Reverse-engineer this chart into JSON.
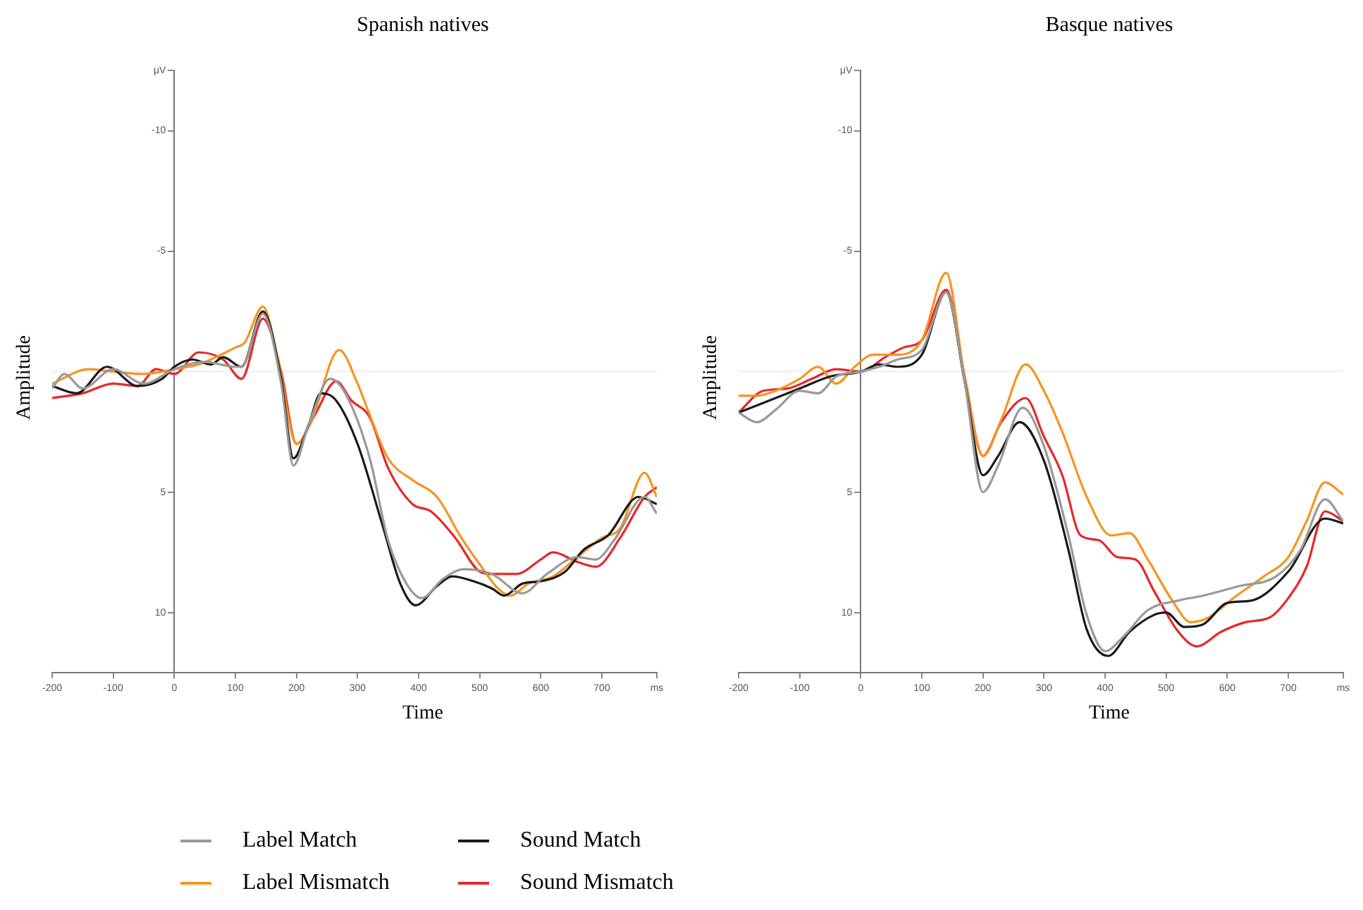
{
  "chart_data": [
    {
      "type": "line",
      "title": "Spanish natives",
      "xlabel": "Time",
      "ylabel": "Amplitude",
      "xlim": [
        -200,
        790
      ],
      "xticks": [
        -200,
        -100,
        0,
        100,
        200,
        300,
        400,
        500,
        600,
        700,
        {
          "value": 790,
          "label": "ms"
        }
      ],
      "ylim": [
        12.5,
        -12.5
      ],
      "yticks": [
        {
          "value": -12.5,
          "label": "μV"
        },
        -10,
        -5,
        5,
        10
      ],
      "grid": false,
      "legend": "bottom",
      "ref_lines": [
        {
          "axis": "y",
          "value": 0,
          "color": "#eeeeee"
        }
      ],
      "series": [
        {
          "name": "Label Match",
          "color": "#999999",
          "x": [
            -200,
            -180,
            -150,
            -100,
            -50,
            0,
            50,
            100,
            110,
            145,
            175,
            195,
            220,
            255,
            280,
            320,
            350,
            380,
            405,
            440,
            475,
            520,
            570,
            610,
            660,
            690,
            720,
            770,
            790
          ],
          "values": [
            0.7,
            0.1,
            0.7,
            -0.1,
            0.5,
            -0.1,
            -0.4,
            -0.2,
            -0.2,
            -2.4,
            0.5,
            3.9,
            2.2,
            0.3,
            0.9,
            3.6,
            7.0,
            8.8,
            9.4,
            8.6,
            8.2,
            8.4,
            9.2,
            8.4,
            7.7,
            7.8,
            7.0,
            5.2,
            5.9
          ]
        },
        {
          "name": "Sound Match",
          "color": "#1a1a1a",
          "x": [
            -200,
            -160,
            -110,
            -60,
            -20,
            0,
            30,
            60,
            80,
            110,
            145,
            175,
            195,
            220,
            240,
            265,
            300,
            340,
            370,
            395,
            430,
            455,
            490,
            520,
            540,
            570,
            600,
            640,
            670,
            710,
            760,
            790
          ],
          "values": [
            0.6,
            0.9,
            -0.2,
            0.6,
            0.3,
            -0.2,
            -0.5,
            -0.3,
            -0.6,
            -0.2,
            -2.5,
            0.3,
            3.6,
            2.2,
            0.9,
            1.2,
            3.0,
            6.3,
            8.8,
            9.7,
            8.9,
            8.5,
            8.7,
            9.0,
            9.3,
            8.8,
            8.7,
            8.3,
            7.4,
            6.8,
            5.2,
            5.5
          ]
        },
        {
          "name": "Label Mismatch",
          "color": "#f7941d",
          "x": [
            -200,
            -140,
            -100,
            -50,
            0,
            40,
            100,
            115,
            145,
            170,
            200,
            225,
            270,
            300,
            320,
            350,
            390,
            430,
            470,
            500,
            530,
            550,
            580,
            620,
            660,
            700,
            730,
            770,
            790
          ],
          "values": [
            0.5,
            -0.1,
            0,
            0.1,
            -0.1,
            -0.3,
            -1.0,
            -1.2,
            -2.7,
            -0.5,
            3.0,
            2.0,
            -0.9,
            0.5,
            1.8,
            3.6,
            4.5,
            5.2,
            6.9,
            8.0,
            9.0,
            9.3,
            8.8,
            8.5,
            7.7,
            6.9,
            6.5,
            4.2,
            5.2
          ]
        },
        {
          "name": "Sound Mismatch",
          "color": "#e8262a",
          "x": [
            -200,
            -150,
            -100,
            -60,
            -30,
            0,
            40,
            80,
            110,
            145,
            175,
            200,
            230,
            265,
            290,
            320,
            350,
            390,
            420,
            460,
            500,
            520,
            560,
            600,
            620,
            660,
            690,
            730,
            770,
            790
          ],
          "values": [
            1.1,
            0.9,
            0.5,
            0.6,
            -0.1,
            0.1,
            -0.8,
            -0.5,
            0.3,
            -2.2,
            0,
            3.0,
            1.8,
            0.4,
            1.2,
            1.9,
            4.0,
            5.5,
            5.8,
            6.9,
            8.3,
            8.4,
            8.4,
            7.8,
            7.5,
            7.9,
            8.1,
            6.9,
            5.2,
            4.8
          ]
        }
      ]
    },
    {
      "type": "line",
      "title": "Basque natives",
      "xlabel": "Time",
      "ylabel": "Amplitude",
      "xlim": [
        -200,
        790
      ],
      "xticks": [
        -200,
        -100,
        0,
        100,
        200,
        300,
        400,
        500,
        600,
        700,
        {
          "value": 790,
          "label": "ms"
        }
      ],
      "ylim": [
        12.5,
        -12.5
      ],
      "yticks": [
        {
          "value": -12.5,
          "label": "μV"
        },
        -10,
        -5,
        5,
        10
      ],
      "grid": false,
      "ref_lines": [
        {
          "axis": "y",
          "value": 0,
          "color": "#eeeeee"
        }
      ],
      "series": [
        {
          "color": "#999999",
          "x": [
            -200,
            -170,
            -140,
            -100,
            -70,
            -40,
            0,
            30,
            60,
            100,
            140,
            170,
            200,
            225,
            265,
            300,
            340,
            370,
            400,
            430,
            470,
            520,
            560,
            620,
            680,
            720,
            760,
            790
          ],
          "values": [
            1.7,
            2.1,
            1.6,
            0.8,
            0.9,
            0.2,
            0,
            -0.2,
            -0.5,
            -0.9,
            -3.3,
            0.4,
            5.0,
            3.9,
            1.5,
            3.1,
            6.8,
            10.1,
            11.6,
            11.0,
            9.9,
            9.5,
            9.3,
            8.9,
            8.5,
            7.4,
            5.3,
            6.2
          ]
        },
        {
          "color": "#1a1a1a",
          "x": [
            -200,
            -150,
            -100,
            -50,
            0,
            30,
            60,
            100,
            140,
            170,
            200,
            225,
            260,
            300,
            340,
            370,
            405,
            440,
            480,
            500,
            530,
            560,
            600,
            640,
            700,
            760,
            790
          ],
          "values": [
            1.7,
            1.2,
            0.7,
            0.2,
            0,
            -0.3,
            -0.2,
            -0.7,
            -3.3,
            0.4,
            4.3,
            3.5,
            2.1,
            3.7,
            7.4,
            10.7,
            11.8,
            10.8,
            10.1,
            10.0,
            10.6,
            10.5,
            9.6,
            9.5,
            8.3,
            6.1,
            6.3
          ]
        },
        {
          "color": "#f7941d",
          "x": [
            -200,
            -170,
            -140,
            -100,
            -70,
            -40,
            -10,
            20,
            60,
            100,
            140,
            170,
            200,
            230,
            270,
            300,
            330,
            370,
            410,
            440,
            470,
            510,
            540,
            570,
            610,
            660,
            700,
            730,
            760,
            790
          ],
          "values": [
            1.0,
            1.0,
            0.8,
            0.3,
            -0.2,
            0.5,
            -0.2,
            -0.7,
            -0.7,
            -1.3,
            -4.1,
            0.2,
            3.5,
            2.0,
            -0.3,
            0.8,
            2.5,
            5.2,
            6.8,
            6.7,
            7.8,
            9.5,
            10.4,
            10.2,
            9.4,
            8.5,
            7.7,
            6.2,
            4.6,
            5.1
          ]
        },
        {
          "color": "#e8262a",
          "x": [
            -200,
            -160,
            -120,
            -80,
            -40,
            0,
            40,
            70,
            100,
            140,
            170,
            200,
            230,
            270,
            300,
            330,
            360,
            390,
            420,
            450,
            480,
            520,
            550,
            590,
            630,
            670,
            700,
            730,
            760,
            790
          ],
          "values": [
            1.7,
            0.8,
            0.7,
            0.3,
            -0.1,
            0,
            -0.6,
            -1.0,
            -1.3,
            -3.4,
            0.2,
            3.5,
            2.1,
            1.1,
            2.7,
            4.3,
            6.8,
            7.0,
            7.7,
            7.8,
            9.1,
            10.8,
            11.4,
            10.8,
            10.4,
            10.2,
            9.4,
            8.1,
            5.8,
            6.2
          ]
        }
      ]
    }
  ]
}
